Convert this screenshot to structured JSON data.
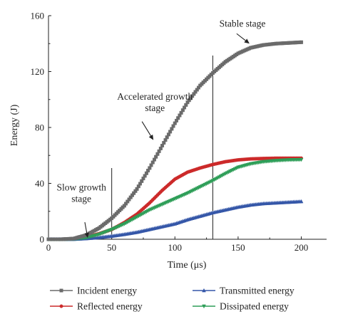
{
  "chart_data": {
    "type": "line",
    "xlabel": "Time (μs)",
    "ylabel": "Energy (J)",
    "xlim": [
      0,
      220
    ],
    "ylim": [
      0,
      160
    ],
    "xticks": [
      0,
      50,
      100,
      150,
      200
    ],
    "yticks": [
      0,
      40,
      80,
      120,
      160
    ],
    "grid": false,
    "legend_position": "bottom",
    "stage_boundaries_x": [
      50,
      130
    ],
    "annotations": [
      {
        "id": "stable",
        "lines": [
          "Stable stage"
        ],
        "text_x": 132,
        "text_y": 152,
        "arrow_to": [
          159,
          140
        ]
      },
      {
        "id": "accelerated",
        "lines": [
          "Accelerated growth",
          "stage"
        ],
        "text_x": 100,
        "text_y": 100,
        "arrow_to": [
          83,
          71
        ]
      },
      {
        "id": "slow",
        "lines": [
          "Slow growth",
          "stage"
        ],
        "text_x": 8,
        "text_y": 35,
        "arrow_to": [
          31,
          1
        ]
      }
    ],
    "series": [
      {
        "name": "Incident energy",
        "color": "#6b6b6b",
        "marker": "square",
        "points": [
          [
            0,
            0
          ],
          [
            10,
            0
          ],
          [
            20,
            0.5
          ],
          [
            30,
            3
          ],
          [
            40,
            8
          ],
          [
            50,
            15
          ],
          [
            60,
            24
          ],
          [
            70,
            36
          ],
          [
            80,
            51
          ],
          [
            90,
            67
          ],
          [
            100,
            83
          ],
          [
            110,
            98
          ],
          [
            120,
            110
          ],
          [
            130,
            119
          ],
          [
            140,
            127
          ],
          [
            150,
            133
          ],
          [
            160,
            137
          ],
          [
            170,
            139
          ],
          [
            180,
            140
          ],
          [
            190,
            140.5
          ],
          [
            200,
            141
          ]
        ]
      },
      {
        "name": "Reflected energy",
        "color": "#cc2a2a",
        "marker": "circle",
        "points": [
          [
            0,
            0
          ],
          [
            10,
            0
          ],
          [
            20,
            0.3
          ],
          [
            30,
            1.5
          ],
          [
            40,
            4
          ],
          [
            50,
            7
          ],
          [
            60,
            12
          ],
          [
            70,
            18
          ],
          [
            80,
            26
          ],
          [
            90,
            35
          ],
          [
            100,
            43
          ],
          [
            110,
            48
          ],
          [
            120,
            51
          ],
          [
            130,
            53.5
          ],
          [
            140,
            55.5
          ],
          [
            150,
            56.8
          ],
          [
            160,
            57.5
          ],
          [
            170,
            57.8
          ],
          [
            180,
            58
          ],
          [
            190,
            58
          ],
          [
            200,
            58
          ]
        ]
      },
      {
        "name": "Transmitted energy",
        "color": "#3557a8",
        "marker": "triangle-up",
        "points": [
          [
            0,
            0
          ],
          [
            10,
            0
          ],
          [
            20,
            0
          ],
          [
            30,
            0.5
          ],
          [
            40,
            1.2
          ],
          [
            50,
            2.2
          ],
          [
            60,
            3.5
          ],
          [
            70,
            5
          ],
          [
            80,
            7
          ],
          [
            90,
            9
          ],
          [
            100,
            11
          ],
          [
            110,
            14
          ],
          [
            120,
            16.5
          ],
          [
            130,
            19
          ],
          [
            140,
            21
          ],
          [
            150,
            23
          ],
          [
            160,
            24.5
          ],
          [
            170,
            25.5
          ],
          [
            180,
            26
          ],
          [
            190,
            26.5
          ],
          [
            200,
            27
          ]
        ]
      },
      {
        "name": "Dissipated energy",
        "color": "#2e9e58",
        "marker": "triangle-down",
        "points": [
          [
            0,
            0
          ],
          [
            10,
            0
          ],
          [
            20,
            0.2
          ],
          [
            30,
            1.2
          ],
          [
            40,
            3.5
          ],
          [
            50,
            7
          ],
          [
            60,
            11
          ],
          [
            70,
            16
          ],
          [
            80,
            21
          ],
          [
            90,
            25
          ],
          [
            100,
            29
          ],
          [
            110,
            33
          ],
          [
            120,
            37.5
          ],
          [
            130,
            42
          ],
          [
            140,
            47
          ],
          [
            150,
            51.5
          ],
          [
            160,
            54
          ],
          [
            170,
            55.5
          ],
          [
            180,
            56.3
          ],
          [
            190,
            56.8
          ],
          [
            200,
            57
          ]
        ]
      }
    ]
  }
}
